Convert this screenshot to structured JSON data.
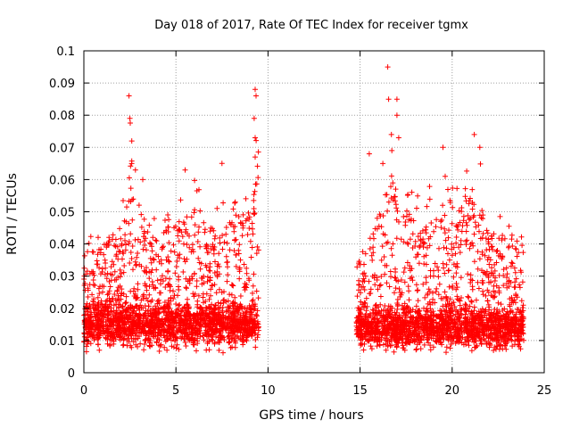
{
  "chart_data": {
    "type": "scatter",
    "title": "Day 018 of 2017, Rate Of TEC Index for receiver tgmx",
    "xlabel": "GPS time / hours",
    "ylabel": "ROTI / TECUs",
    "xlim": [
      0,
      25
    ],
    "ylim": [
      0,
      0.1
    ],
    "xticks": [
      0,
      5,
      10,
      15,
      20,
      25
    ],
    "xtick_labels": [
      "0",
      "5",
      "10",
      "15",
      "20",
      "25"
    ],
    "yticks": [
      0,
      0.01,
      0.02,
      0.03,
      0.04,
      0.05,
      0.06,
      0.07,
      0.08,
      0.09,
      0.1
    ],
    "ytick_labels": [
      "0",
      "0.01",
      "0.02",
      "0.03",
      "0.04",
      "0.05",
      "0.06",
      "0.07",
      "0.08",
      "0.09",
      "0.1"
    ],
    "grid": true,
    "legend": "none",
    "marker": "plus",
    "color": "#ff0000",
    "series": [
      {
        "segments": [
          {
            "x_range": [
              0.0,
              9.5
            ],
            "baseline": 0.015,
            "spread": 0.012,
            "envelope": [
              [
                0.0,
                0.042
              ],
              [
                1.0,
                0.045
              ],
              [
                2.0,
                0.055
              ],
              [
                2.5,
                0.086
              ],
              [
                3.0,
                0.055
              ],
              [
                4.0,
                0.05
              ],
              [
                5.0,
                0.055
              ],
              [
                6.0,
                0.06
              ],
              [
                7.0,
                0.05
              ],
              [
                8.0,
                0.055
              ],
              [
                9.0,
                0.065
              ],
              [
                9.5,
                0.088
              ]
            ],
            "peaks": [
              {
                "x": 2.45,
                "y": 0.086
              },
              {
                "x": 2.5,
                "y": 0.079
              },
              {
                "x": 2.6,
                "y": 0.072
              },
              {
                "x": 2.8,
                "y": 0.063
              },
              {
                "x": 3.2,
                "y": 0.06
              },
              {
                "x": 5.5,
                "y": 0.063
              },
              {
                "x": 7.5,
                "y": 0.065
              },
              {
                "x": 9.3,
                "y": 0.088
              },
              {
                "x": 9.35,
                "y": 0.086
              },
              {
                "x": 9.25,
                "y": 0.079
              },
              {
                "x": 9.3,
                "y": 0.073
              },
              {
                "x": 9.3,
                "y": 0.067
              }
            ]
          },
          {
            "x_range": [
              14.8,
              23.9
            ],
            "baseline": 0.014,
            "spread": 0.011,
            "envelope": [
              [
                14.8,
                0.04
              ],
              [
                15.5,
                0.05
              ],
              [
                16.0,
                0.058
              ],
              [
                16.5,
                0.075
              ],
              [
                17.0,
                0.065
              ],
              [
                18.0,
                0.055
              ],
              [
                19.0,
                0.06
              ],
              [
                19.5,
                0.07
              ],
              [
                20.0,
                0.062
              ],
              [
                21.0,
                0.065
              ],
              [
                21.5,
                0.07
              ],
              [
                22.0,
                0.05
              ],
              [
                23.0,
                0.05
              ],
              [
                23.9,
                0.052
              ]
            ],
            "peaks": [
              {
                "x": 16.5,
                "y": 0.095
              },
              {
                "x": 16.55,
                "y": 0.085
              },
              {
                "x": 17.0,
                "y": 0.085
              },
              {
                "x": 17.0,
                "y": 0.08
              },
              {
                "x": 16.7,
                "y": 0.074
              },
              {
                "x": 17.1,
                "y": 0.073
              },
              {
                "x": 19.5,
                "y": 0.07
              },
              {
                "x": 21.2,
                "y": 0.074
              },
              {
                "x": 21.5,
                "y": 0.07
              },
              {
                "x": 15.5,
                "y": 0.068
              }
            ]
          }
        ]
      }
    ]
  }
}
